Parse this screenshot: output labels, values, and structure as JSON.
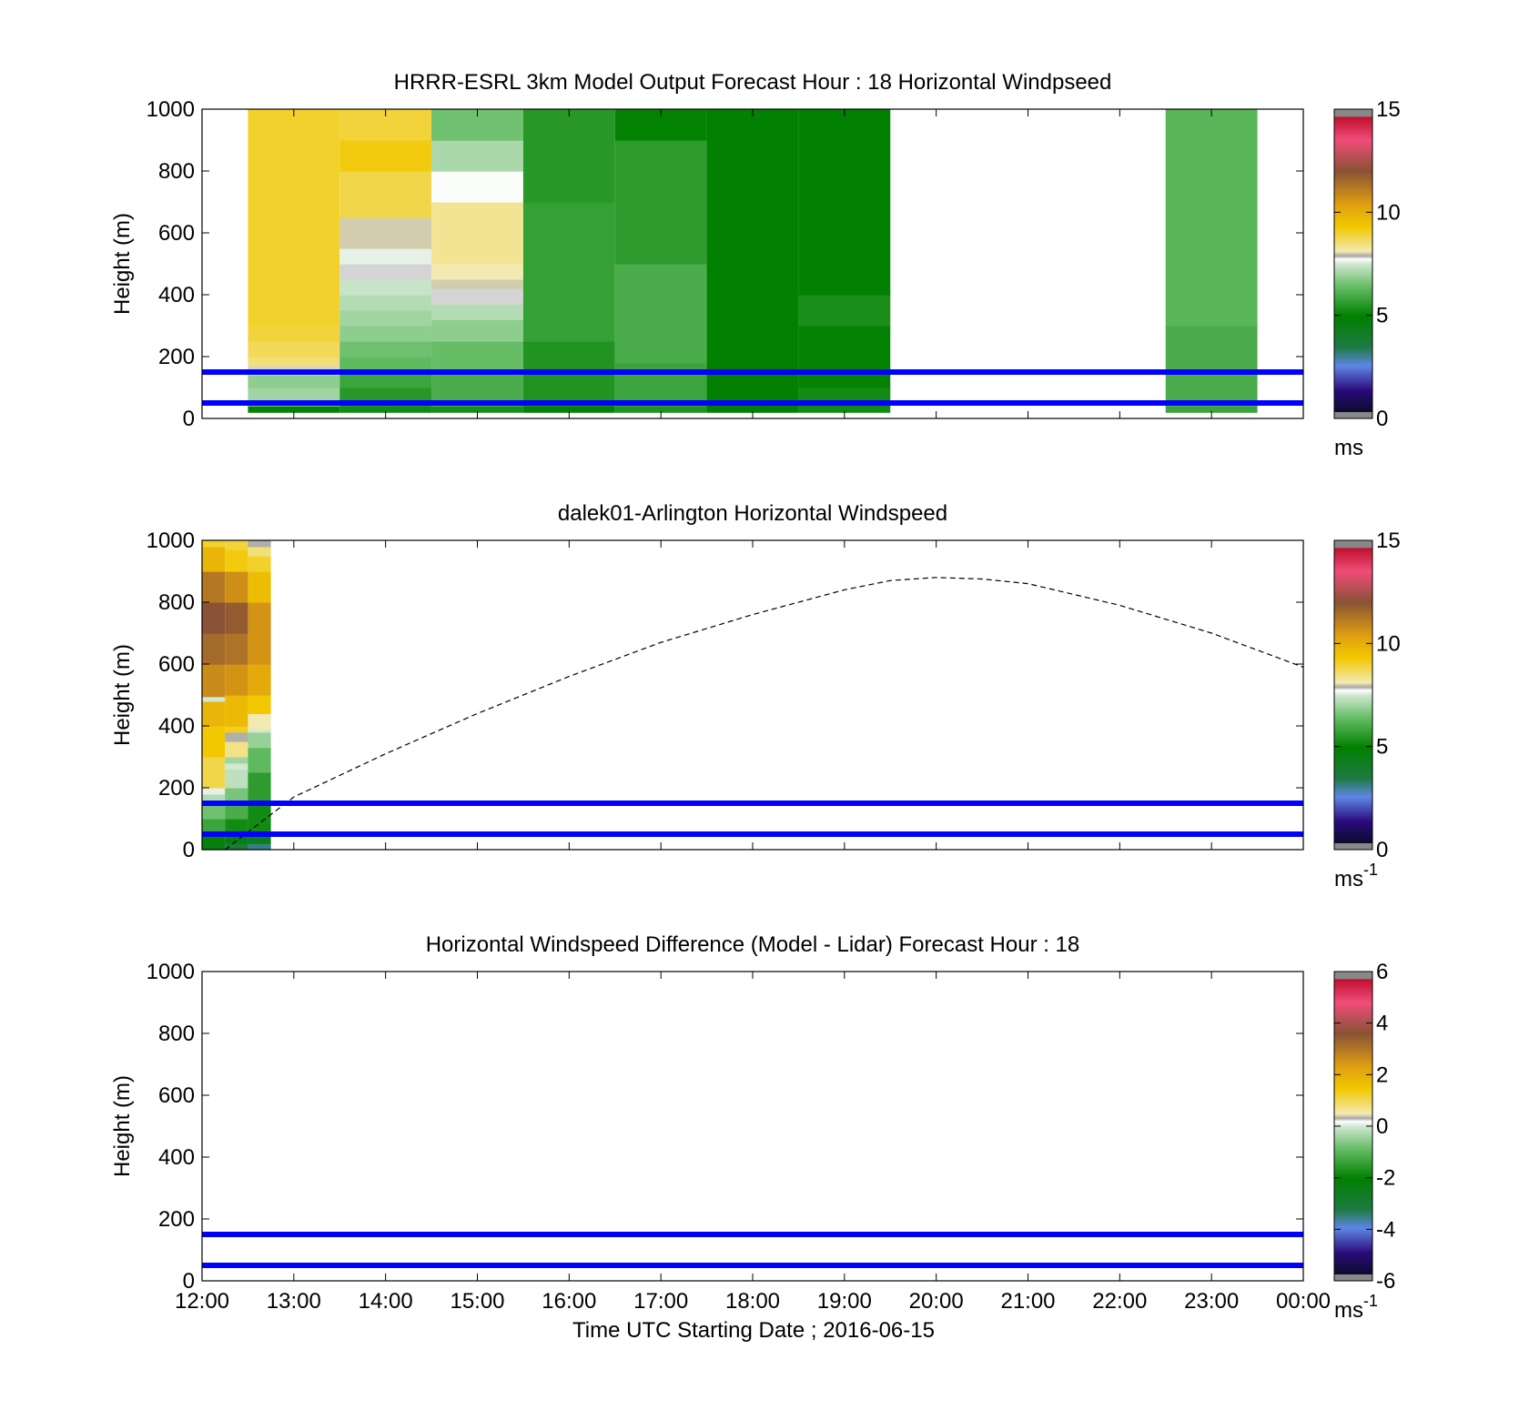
{
  "figure": {
    "xlabel": "Time UTC  Starting Date ; 2016-06-15",
    "x_ticks": [
      "12:00",
      "13:00",
      "14:00",
      "15:00",
      "16:00",
      "17:00",
      "18:00",
      "19:00",
      "20:00",
      "21:00",
      "22:00",
      "23:00",
      "00:00"
    ]
  },
  "panels": [
    {
      "title": "HRRR-ESRL 3km Model Output   Forecast Hour : 18 Horizontal Windpseed",
      "ylabel": "Height (m)",
      "y_ticks": [
        "0",
        "200",
        "400",
        "600",
        "800",
        "1000"
      ],
      "colorbar": {
        "ticks": [
          "0",
          "5",
          "10",
          "15"
        ],
        "unit": "ms",
        "unit_sup": ""
      }
    },
    {
      "title": "dalek01-Arlington  Horizontal Windspeed",
      "ylabel": "Height (m)",
      "y_ticks": [
        "0",
        "200",
        "400",
        "600",
        "800",
        "1000"
      ],
      "colorbar": {
        "ticks": [
          "0",
          "5",
          "10",
          "15"
        ],
        "unit": "ms",
        "unit_sup": "-1"
      }
    },
    {
      "title": "Horizontal Windspeed Difference (Model - Lidar) Forecast Hour : 18",
      "ylabel": "Height (m)",
      "y_ticks": [
        "0",
        "200",
        "400",
        "600",
        "800",
        "1000"
      ],
      "colorbar": {
        "ticks": [
          "-6",
          "-4",
          "-2",
          "0",
          "2",
          "4",
          "6"
        ],
        "unit": "ms",
        "unit_sup": "-1"
      }
    }
  ],
  "chart_data": [
    {
      "type": "heatmap",
      "title": "HRRR-ESRL 3km Model Output   Forecast Hour : 18 Horizontal Windpseed",
      "ylabel": "Height (m)",
      "xlim": [
        12,
        24
      ],
      "ylim": [
        0,
        1000
      ],
      "clim": [
        0,
        15
      ],
      "reference_lines_m": [
        50,
        150
      ],
      "reference_line_color": "#0000ff",
      "columns": [
        {
          "t": 13,
          "cells": [
            [
              20,
              40,
              5.0
            ],
            [
              40,
              60,
              6.5
            ],
            [
              60,
              100,
              7.0
            ],
            [
              100,
              140,
              6.8
            ],
            [
              140,
              170,
              7.8
            ],
            [
              170,
              200,
              8.5
            ],
            [
              200,
              250,
              8.7
            ],
            [
              250,
              300,
              8.9
            ],
            [
              300,
              1000,
              9.0
            ]
          ]
        },
        {
          "t": 14,
          "cells": [
            [
              20,
              40,
              5.2
            ],
            [
              40,
              100,
              5.5
            ],
            [
              100,
              150,
              5.8
            ],
            [
              150,
              200,
              6.3
            ],
            [
              200,
              250,
              6.5
            ],
            [
              250,
              300,
              6.8
            ],
            [
              300,
              350,
              7.0
            ],
            [
              350,
              400,
              7.2
            ],
            [
              400,
              450,
              7.4
            ],
            [
              450,
              500,
              7.8
            ],
            [
              500,
              550,
              7.6
            ],
            [
              550,
              650,
              8.0
            ],
            [
              650,
              800,
              8.8
            ],
            [
              800,
              900,
              9.2
            ],
            [
              900,
              1000,
              8.9
            ]
          ]
        },
        {
          "t": 15,
          "cells": [
            [
              20,
              40,
              5.3
            ],
            [
              40,
              150,
              6.0
            ],
            [
              150,
              250,
              6.4
            ],
            [
              250,
              320,
              6.8
            ],
            [
              320,
              370,
              7.2
            ],
            [
              370,
              420,
              7.8
            ],
            [
              420,
              450,
              8.0
            ],
            [
              450,
              500,
              8.1
            ],
            [
              500,
              700,
              8.3
            ],
            [
              700,
              800,
              7.7
            ],
            [
              800,
              900,
              7.1
            ],
            [
              900,
              1000,
              6.5
            ]
          ]
        },
        {
          "t": 16,
          "cells": [
            [
              20,
              40,
              5.0
            ],
            [
              40,
              250,
              5.4
            ],
            [
              250,
              700,
              5.7
            ],
            [
              700,
              1000,
              5.5
            ]
          ]
        },
        {
          "t": 17,
          "cells": [
            [
              20,
              40,
              5.4
            ],
            [
              40,
              180,
              5.8
            ],
            [
              180,
              500,
              6.0
            ],
            [
              500,
              900,
              5.6
            ],
            [
              900,
              1000,
              5.0
            ]
          ]
        },
        {
          "t": 18,
          "cells": [
            [
              20,
              1000,
              4.9
            ]
          ]
        },
        {
          "t": 19,
          "cells": [
            [
              20,
              100,
              5.2
            ],
            [
              100,
              300,
              5.0
            ],
            [
              300,
              400,
              5.3
            ],
            [
              400,
              1000,
              4.9
            ]
          ]
        },
        {
          "t": 23,
          "cells": [
            [
              20,
              40,
              5.8
            ],
            [
              40,
              300,
              6.0
            ],
            [
              300,
              1000,
              6.2
            ]
          ]
        }
      ]
    },
    {
      "type": "heatmap",
      "title": "dalek01-Arlington  Horizontal Windspeed",
      "ylabel": "Height (m)",
      "xlim": [
        12,
        24
      ],
      "ylim": [
        0,
        1000
      ],
      "clim": [
        0,
        15
      ],
      "reference_lines_m": [
        50,
        150
      ],
      "reference_line_color": "#0000ff",
      "columns": [
        {
          "t": 12.125,
          "cells": [
            [
              0,
              20,
              4.5
            ],
            [
              20,
              50,
              5.0
            ],
            [
              50,
              100,
              5.8
            ],
            [
              100,
              150,
              6.5
            ],
            [
              150,
              180,
              7.2
            ],
            [
              180,
              200,
              7.6
            ],
            [
              200,
              300,
              8.8
            ],
            [
              300,
              400,
              9.3
            ],
            [
              400,
              480,
              9.8
            ],
            [
              480,
              495,
              7.5
            ],
            [
              495,
              600,
              10.8
            ],
            [
              600,
              700,
              11.5
            ],
            [
              700,
              800,
              12.0
            ],
            [
              800,
              900,
              11.2
            ],
            [
              900,
              980,
              9.8
            ],
            [
              980,
              1000,
              9.0
            ]
          ]
        },
        {
          "t": 12.375,
          "cells": [
            [
              0,
              20,
              3.6
            ],
            [
              20,
              50,
              4.6
            ],
            [
              50,
              100,
              5.2
            ],
            [
              100,
              150,
              6.0
            ],
            [
              150,
              200,
              6.6
            ],
            [
              200,
              260,
              7.3
            ],
            [
              260,
              280,
              7.5
            ],
            [
              280,
              300,
              7.0
            ],
            [
              300,
              350,
              8.4
            ],
            [
              350,
              380,
              7.9
            ],
            [
              380,
              400,
              9.1
            ],
            [
              400,
              500,
              9.7
            ],
            [
              500,
              600,
              10.6
            ],
            [
              600,
              700,
              11.3
            ],
            [
              700,
              800,
              11.8
            ],
            [
              800,
              900,
              10.7
            ],
            [
              900,
              970,
              9.2
            ],
            [
              970,
              1000,
              8.9
            ]
          ]
        },
        {
          "t": 12.625,
          "cells": [
            [
              0,
              20,
              3.1
            ],
            [
              20,
              60,
              4.4
            ],
            [
              60,
              150,
              5.2
            ],
            [
              150,
              250,
              5.6
            ],
            [
              250,
              330,
              6.3
            ],
            [
              330,
              380,
              6.9
            ],
            [
              380,
              390,
              7.5
            ],
            [
              390,
              440,
              8.1
            ],
            [
              440,
              500,
              9.3
            ],
            [
              500,
              600,
              10.1
            ],
            [
              600,
              800,
              10.6
            ],
            [
              800,
              900,
              9.6
            ],
            [
              900,
              950,
              9.0
            ],
            [
              950,
              980,
              8.5
            ],
            [
              980,
              1000,
              7.9
            ]
          ]
        }
      ],
      "dashed_curve": {
        "x": [
          12.25,
          13,
          14,
          15,
          16,
          17,
          18,
          19,
          19.5,
          20,
          20.5,
          21,
          22,
          23,
          24
        ],
        "y": [
          0,
          170,
          310,
          440,
          560,
          670,
          760,
          840,
          870,
          880,
          875,
          860,
          790,
          700,
          590
        ]
      }
    },
    {
      "type": "heatmap",
      "title": "Horizontal Windspeed Difference (Model - Lidar) Forecast Hour : 18",
      "xlabel": "Time UTC  Starting Date ; 2016-06-15",
      "ylabel": "Height (m)",
      "xlim": [
        12,
        24
      ],
      "ylim": [
        0,
        1000
      ],
      "clim": [
        -6,
        6
      ],
      "reference_lines_m": [
        50,
        150
      ],
      "reference_line_color": "#0000ff",
      "columns": []
    }
  ]
}
